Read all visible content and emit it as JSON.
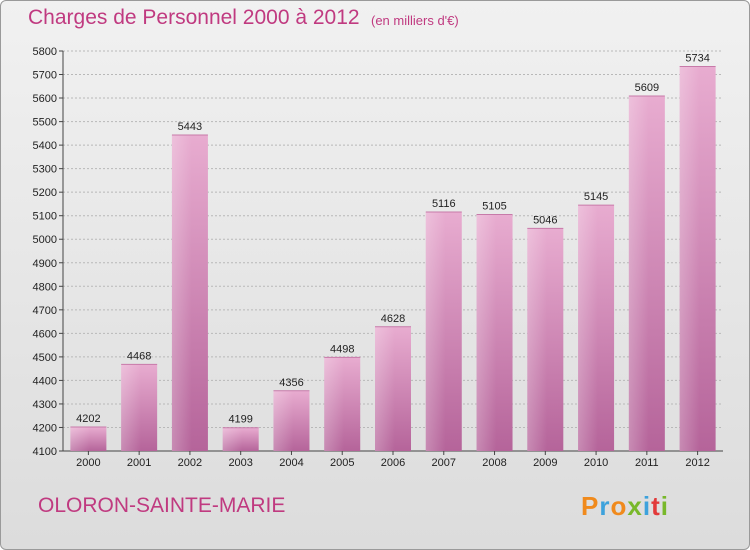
{
  "header": {
    "title": "Charges de Personnel 2000 à 2012",
    "subtitle": "(en milliers d'€)"
  },
  "footer": {
    "city": "OLORON-SAINTE-MARIE",
    "logo_text": "Proxiti"
  },
  "colors": {
    "accent": "#c03a80",
    "bar_light": "#e6a8cd",
    "bar_dark": "#b9679a"
  },
  "chart_data": {
    "type": "bar",
    "title": "Charges de Personnel 2000 à 2012",
    "subtitle": "(en milliers d'€)",
    "categories": [
      "2000",
      "2001",
      "2002",
      "2003",
      "2004",
      "2005",
      "2006",
      "2007",
      "2008",
      "2009",
      "2010",
      "2011",
      "2012"
    ],
    "values": [
      4202,
      4468,
      5443,
      4199,
      4356,
      4498,
      4628,
      5116,
      5105,
      5046,
      5145,
      5609,
      5734
    ],
    "ylim": [
      4100,
      5800
    ],
    "ytick_step": 100,
    "grid": true,
    "legend": "none"
  }
}
